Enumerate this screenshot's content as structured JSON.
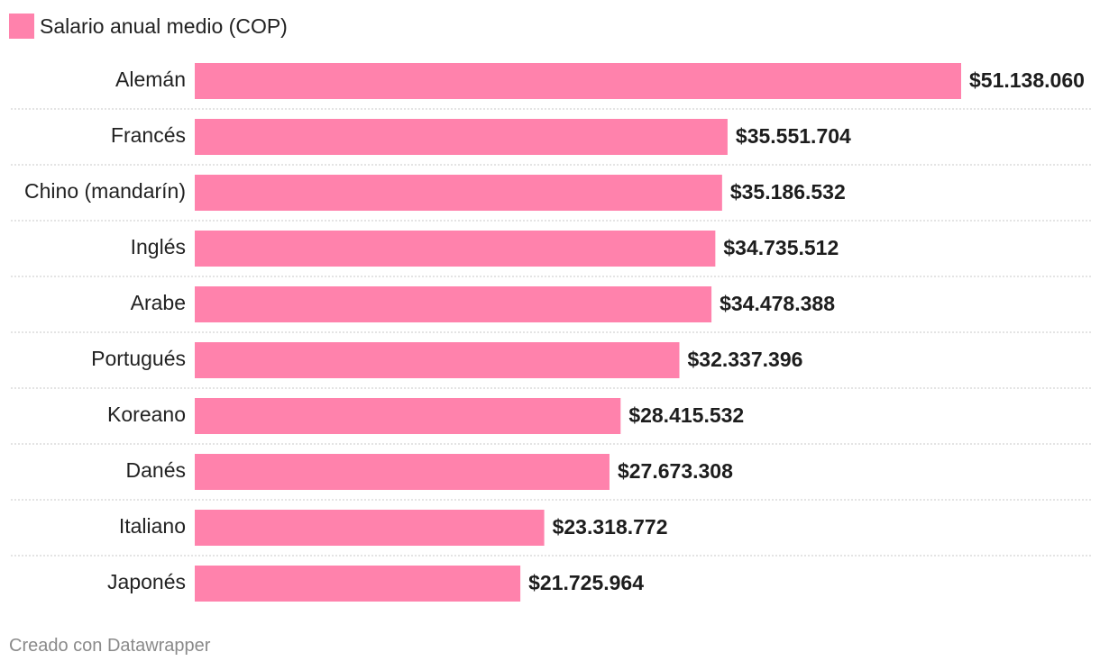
{
  "chart_data": {
    "type": "bar",
    "orientation": "horizontal",
    "legend": {
      "label": "Salario anual medio (COP)",
      "placement": "top-left"
    },
    "series": [
      {
        "name": "Salario anual medio (COP)",
        "color": "#ff82ac",
        "values": [
          51138060,
          35551704,
          35186532,
          34735512,
          34478388,
          32337396,
          28415532,
          27673308,
          23318772,
          21725964
        ],
        "labels": [
          "$51.138.060",
          "$35.551.704",
          "$35.186.532",
          "$34.735.512",
          "$34.478.388",
          "$32.337.396",
          "$28.415.532",
          "$27.673.308",
          "$23.318.772",
          "$21.725.964"
        ]
      }
    ],
    "categories": [
      "Alemán",
      "Francés",
      "Chino (mandarín)",
      "Inglés",
      "Arabe",
      "Portugués",
      "Koreano",
      "Danés",
      "Italiano",
      "Japonés"
    ],
    "xlim": [
      0,
      51138060
    ],
    "grid": false,
    "title": "",
    "xlabel": "",
    "ylabel": ""
  },
  "footer": {
    "credit": "Creado con Datawrapper"
  },
  "colors": {
    "bar": "#ff82ac",
    "separator": "#c8c8c8",
    "text": "#222222",
    "credit": "#8a8a8a"
  }
}
